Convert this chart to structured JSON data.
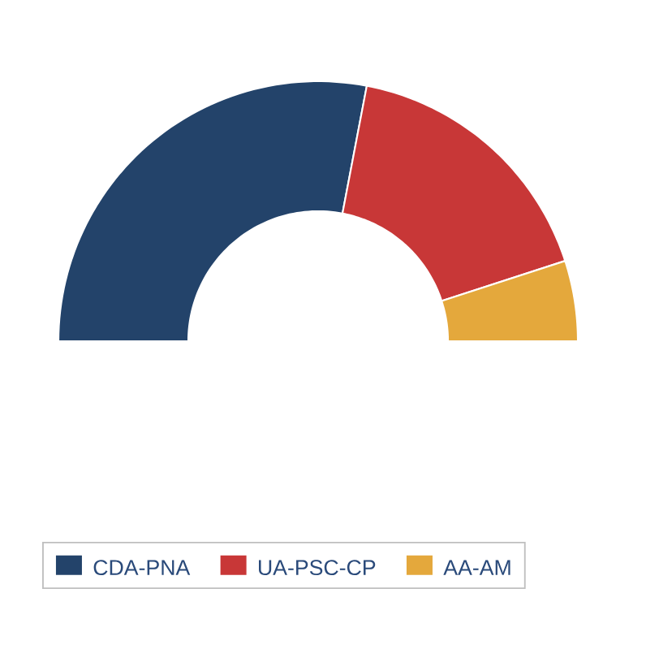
{
  "chart_data": {
    "type": "donut",
    "categories": [
      "CDA-PNA",
      "UA-PSC-CP",
      "AA-AM"
    ],
    "values": [
      56,
      34,
      10
    ],
    "colors": [
      "#23436a",
      "#c83737",
      "#e4a83c"
    ],
    "legend": "bottom"
  }
}
